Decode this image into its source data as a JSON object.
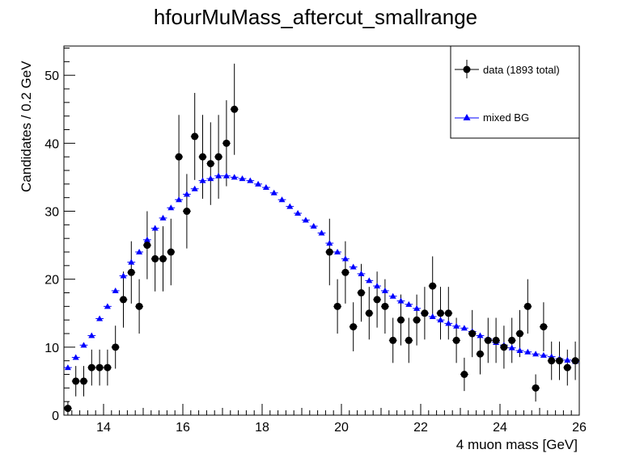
{
  "chart_data": {
    "type": "scatter",
    "title": "hfourMuMass_aftercut_smallrange",
    "xlabel": "4 muon mass [GeV]",
    "ylabel": "Candidates / 0.2 GeV",
    "xlim": [
      13,
      26
    ],
    "ylim": [
      0,
      54.3
    ],
    "x_ticks": [
      14,
      16,
      18,
      20,
      22,
      24,
      26
    ],
    "y_ticks": [
      0,
      10,
      20,
      30,
      40,
      50
    ],
    "bin_width": 0.2,
    "grid": false,
    "legend_position": "top-right",
    "series": [
      {
        "name": "data (1893 total)",
        "marker": "circle",
        "color": "#000000",
        "error_bars": "poisson-sqrt",
        "x": [
          13.1,
          13.3,
          13.5,
          13.7,
          13.9,
          14.1,
          14.3,
          14.5,
          14.7,
          14.9,
          15.1,
          15.3,
          15.5,
          15.7,
          15.9,
          16.1,
          16.3,
          16.5,
          16.7,
          16.9,
          17.1,
          17.3,
          19.7,
          19.9,
          20.1,
          20.3,
          20.5,
          20.7,
          20.9,
          21.1,
          21.3,
          21.5,
          21.7,
          21.9,
          22.1,
          22.3,
          22.5,
          22.7,
          22.9,
          23.1,
          23.3,
          23.5,
          23.7,
          23.9,
          24.1,
          24.3,
          24.5,
          24.7,
          24.9,
          25.1,
          25.3,
          25.5,
          25.7,
          25.9
        ],
        "values": [
          1,
          5,
          5,
          7,
          7,
          7,
          10,
          17,
          21,
          16,
          25,
          23,
          23,
          24,
          38,
          30,
          41,
          38,
          37,
          38,
          40,
          45,
          24,
          16,
          21,
          13,
          18,
          15,
          17,
          16,
          11,
          14,
          11,
          14,
          15,
          19,
          15,
          15,
          11,
          6,
          12,
          9,
          11,
          11,
          10,
          11,
          12,
          16,
          4,
          13,
          8,
          8,
          7,
          8
        ]
      },
      {
        "name": "mixed BG",
        "marker": "triangle",
        "color": "#0000ff",
        "x": [
          13.1,
          13.3,
          13.5,
          13.7,
          13.9,
          14.1,
          14.3,
          14.5,
          14.7,
          14.9,
          15.1,
          15.3,
          15.5,
          15.7,
          15.9,
          16.1,
          16.3,
          16.5,
          16.7,
          16.9,
          17.1,
          17.3,
          17.5,
          17.7,
          17.9,
          18.1,
          18.3,
          18.5,
          18.7,
          18.9,
          19.1,
          19.3,
          19.5,
          19.7,
          19.9,
          20.1,
          20.3,
          20.5,
          20.7,
          20.9,
          21.1,
          21.3,
          21.5,
          21.7,
          21.9,
          22.1,
          22.3,
          22.5,
          22.7,
          22.9,
          23.1,
          23.3,
          23.5,
          23.7,
          23.9,
          24.1,
          24.3,
          24.5,
          24.7,
          24.9,
          25.1,
          25.3,
          25.5,
          25.7,
          25.9
        ],
        "values": [
          7,
          8.5,
          10.3,
          11.7,
          14.2,
          16,
          18.3,
          20.5,
          22.5,
          24,
          25.8,
          27.5,
          29,
          30.5,
          31.7,
          32.5,
          33.3,
          34.5,
          34.8,
          35.2,
          35.2,
          35,
          34.8,
          34.5,
          34,
          33.5,
          32.7,
          31.7,
          30.7,
          29.7,
          28.7,
          27.8,
          26.8,
          25.3,
          24,
          23,
          21.8,
          20.8,
          19.8,
          19,
          18.3,
          17.5,
          16.8,
          16.3,
          15.7,
          15,
          14.5,
          14,
          13.5,
          13.1,
          12.8,
          12.3,
          11.7,
          11.2,
          10.7,
          10.3,
          9.9,
          9.5,
          9.3,
          9,
          8.8,
          8.6,
          8.3,
          8.1,
          7.9
        ]
      }
    ]
  }
}
